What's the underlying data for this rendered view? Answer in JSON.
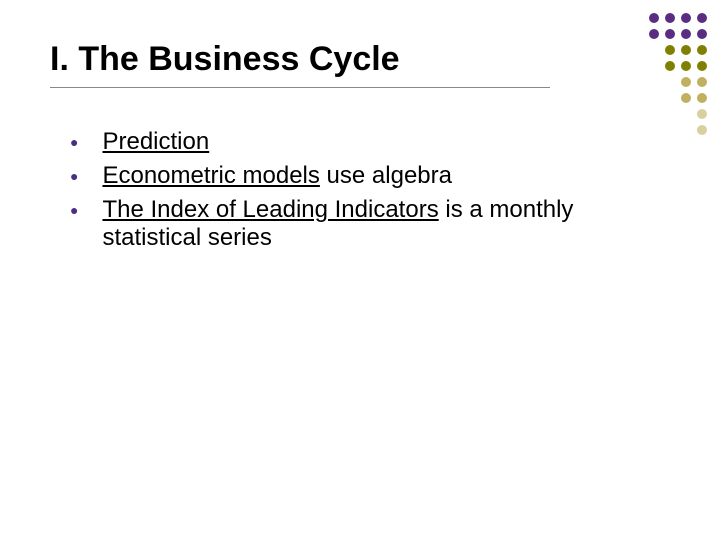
{
  "title": "I. The Business Cycle",
  "bullets": [
    {
      "underlined": "Prediction",
      "rest": ""
    },
    {
      "underlined": "Econometric models",
      "rest": " use algebra"
    },
    {
      "underlined": "The Index of Leading Indicators",
      "rest": " is a monthly statistical series"
    }
  ],
  "colors": {
    "bullet_color": "#4b2e83",
    "text_color": "#000000",
    "background": "#ffffff"
  },
  "decoration": {
    "dot_colors": [
      [
        "#5a2d82",
        "#5a2d82",
        "#5a2d82",
        "#5a2d82"
      ],
      [
        "#5a2d82",
        "#5a2d82",
        "#5a2d82",
        "#5a2d82"
      ],
      [
        "transparent",
        "#808000",
        "#808000",
        "#808000"
      ],
      [
        "transparent",
        "#808000",
        "#808000",
        "#808000"
      ],
      [
        "transparent",
        "transparent",
        "#c0b060",
        "#c0b060"
      ],
      [
        "transparent",
        "transparent",
        "#c0b060",
        "#c0b060"
      ],
      [
        "transparent",
        "transparent",
        "transparent",
        "#d8d0a0"
      ],
      [
        "transparent",
        "transparent",
        "transparent",
        "#d8d0a0"
      ]
    ]
  }
}
